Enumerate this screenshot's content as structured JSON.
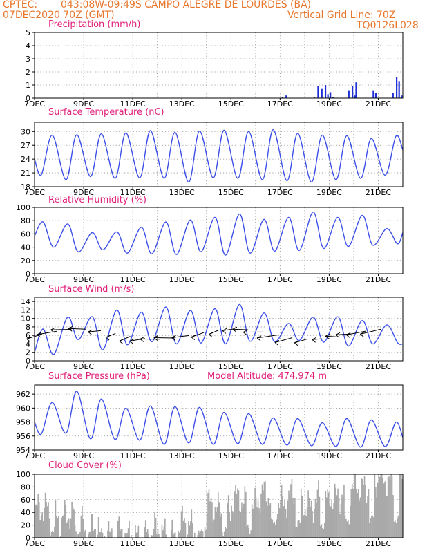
{
  "header": {
    "source": "CPTEC:",
    "location": "043:08W-09:49S  CAMPO ALEGRE DE LOURDES (BA)",
    "run_date": "07DEC2020 70Z (GMT)",
    "grid_note": "Vertical Grid Line: 70Z",
    "model_code": "TQ0126L028"
  },
  "colors": {
    "header_text": "#e8772e",
    "panel_title": "#e0207a",
    "series_line": "#3b4fe8",
    "bars_blue": "#1f2fd8",
    "cloud_fill": "#a9a9a9",
    "wind_barb": "#000000"
  },
  "x_ticks": [
    "7DEC",
    "9DEC",
    "11DEC",
    "13DEC",
    "15DEC",
    "17DEC",
    "19DEC",
    "21DEC"
  ],
  "chart_data": [
    {
      "type": "bar",
      "title": "Precipitation  (mm/h)",
      "x_start_day": 7,
      "x_end_day": 22,
      "ylim": [
        0,
        5
      ],
      "yticks": [
        0,
        1,
        2,
        3,
        4,
        5
      ],
      "x": [
        17.1,
        17.25,
        18.4,
        18.55,
        18.7,
        18.85,
        18.95,
        19.05,
        19.15,
        19.8,
        19.95,
        20.05,
        20.1,
        20.8,
        20.9,
        21.6,
        21.75,
        21.85,
        21.95
      ],
      "values": [
        0.1,
        0.2,
        0.05,
        0.9,
        0.7,
        1.0,
        0.3,
        0.45,
        0.1,
        0.6,
        0.9,
        0.2,
        1.2,
        0.6,
        0.4,
        0.4,
        1.6,
        1.3,
        0.2
      ]
    },
    {
      "type": "line",
      "title": "Surface Temperature (nC)",
      "ylim": [
        18,
        32
      ],
      "yticks": [
        18,
        21,
        24,
        27,
        30
      ],
      "x_start_day": 7,
      "x_end_day": 22,
      "daily_max": [
        29.2,
        29.3,
        29.5,
        29.7,
        30.2,
        29.8,
        30.1,
        30.3,
        30.0,
        30.4,
        29.6,
        29.2,
        29.1,
        28.5,
        29.0
      ],
      "daily_min": [
        20.6,
        19.5,
        20.2,
        19.8,
        19.9,
        19.8,
        19.0,
        19.9,
        19.8,
        19.5,
        19.3,
        19.0,
        19.5,
        19.8,
        20.5
      ],
      "start_value": 24.0,
      "end_value": 26.0
    },
    {
      "type": "line",
      "title": "Relative Humidity  (%)",
      "ylim": [
        0,
        100
      ],
      "yticks": [
        0,
        20,
        40,
        60,
        80,
        100
      ],
      "x_start_day": 7,
      "x_end_day": 22,
      "daily_max": [
        78,
        75,
        62,
        63,
        70,
        78,
        81,
        85,
        90,
        82,
        85,
        93,
        85,
        88,
        68
      ],
      "daily_min": [
        40,
        33,
        36,
        31,
        30,
        29,
        33,
        28,
        31,
        34,
        35,
        38,
        41,
        43,
        45
      ],
      "start_value": 57,
      "end_value": 62
    },
    {
      "type": "line",
      "title": "Surface Wind  (m/s)",
      "ylim": [
        0,
        15
      ],
      "yticks": [
        0,
        2,
        4,
        6,
        8,
        10,
        12,
        14
      ],
      "x_start_day": 7,
      "x_end_day": 22,
      "daily_max": [
        7.5,
        10.3,
        10.4,
        12.0,
        11.5,
        12.7,
        11.9,
        12.3,
        13.3,
        11.3,
        8.8,
        10.3,
        10.4,
        9.5,
        8.5
      ],
      "daily_min": [
        1.5,
        5.0,
        2.6,
        3.8,
        4.5,
        4.0,
        4.2,
        4.0,
        4.6,
        4.5,
        4.8,
        4.4,
        3.5,
        4.0,
        4.3
      ],
      "start_value": 2.0,
      "end_value": 4.0,
      "barbs": "wind vectors from the east"
    },
    {
      "type": "line",
      "title": "Surface Pressure (hPa)",
      "annotation": "Model Altitude: 474.974 m",
      "ylim": [
        954,
        963.3
      ],
      "yticks": [
        954,
        956,
        958,
        960,
        962
      ],
      "x_start_day": 7,
      "x_end_day": 22,
      "daily_max": [
        960.8,
        962.4,
        961.3,
        960.0,
        960.3,
        960.2,
        960.1,
        959.4,
        959.2,
        958.6,
        958.5,
        957.9,
        958.5,
        958.3,
        958.0
      ],
      "daily_min": [
        956.3,
        956.4,
        955.6,
        955.5,
        955.4,
        954.8,
        955.0,
        954.8,
        954.9,
        954.8,
        954.7,
        954.6,
        954.5,
        954.4,
        954.5
      ],
      "start_value": 958.0,
      "end_value": 955.8
    },
    {
      "type": "bar",
      "title": "Cloud Cover  (%)",
      "ylim": [
        0,
        100
      ],
      "yticks": [
        0,
        20,
        40,
        60,
        80,
        100
      ],
      "x_start_day": 7,
      "x_end_day": 22,
      "daily_mean": [
        40,
        30,
        12,
        8,
        5,
        10,
        20,
        45,
        55,
        62,
        60,
        55,
        70,
        85,
        92
      ]
    }
  ]
}
